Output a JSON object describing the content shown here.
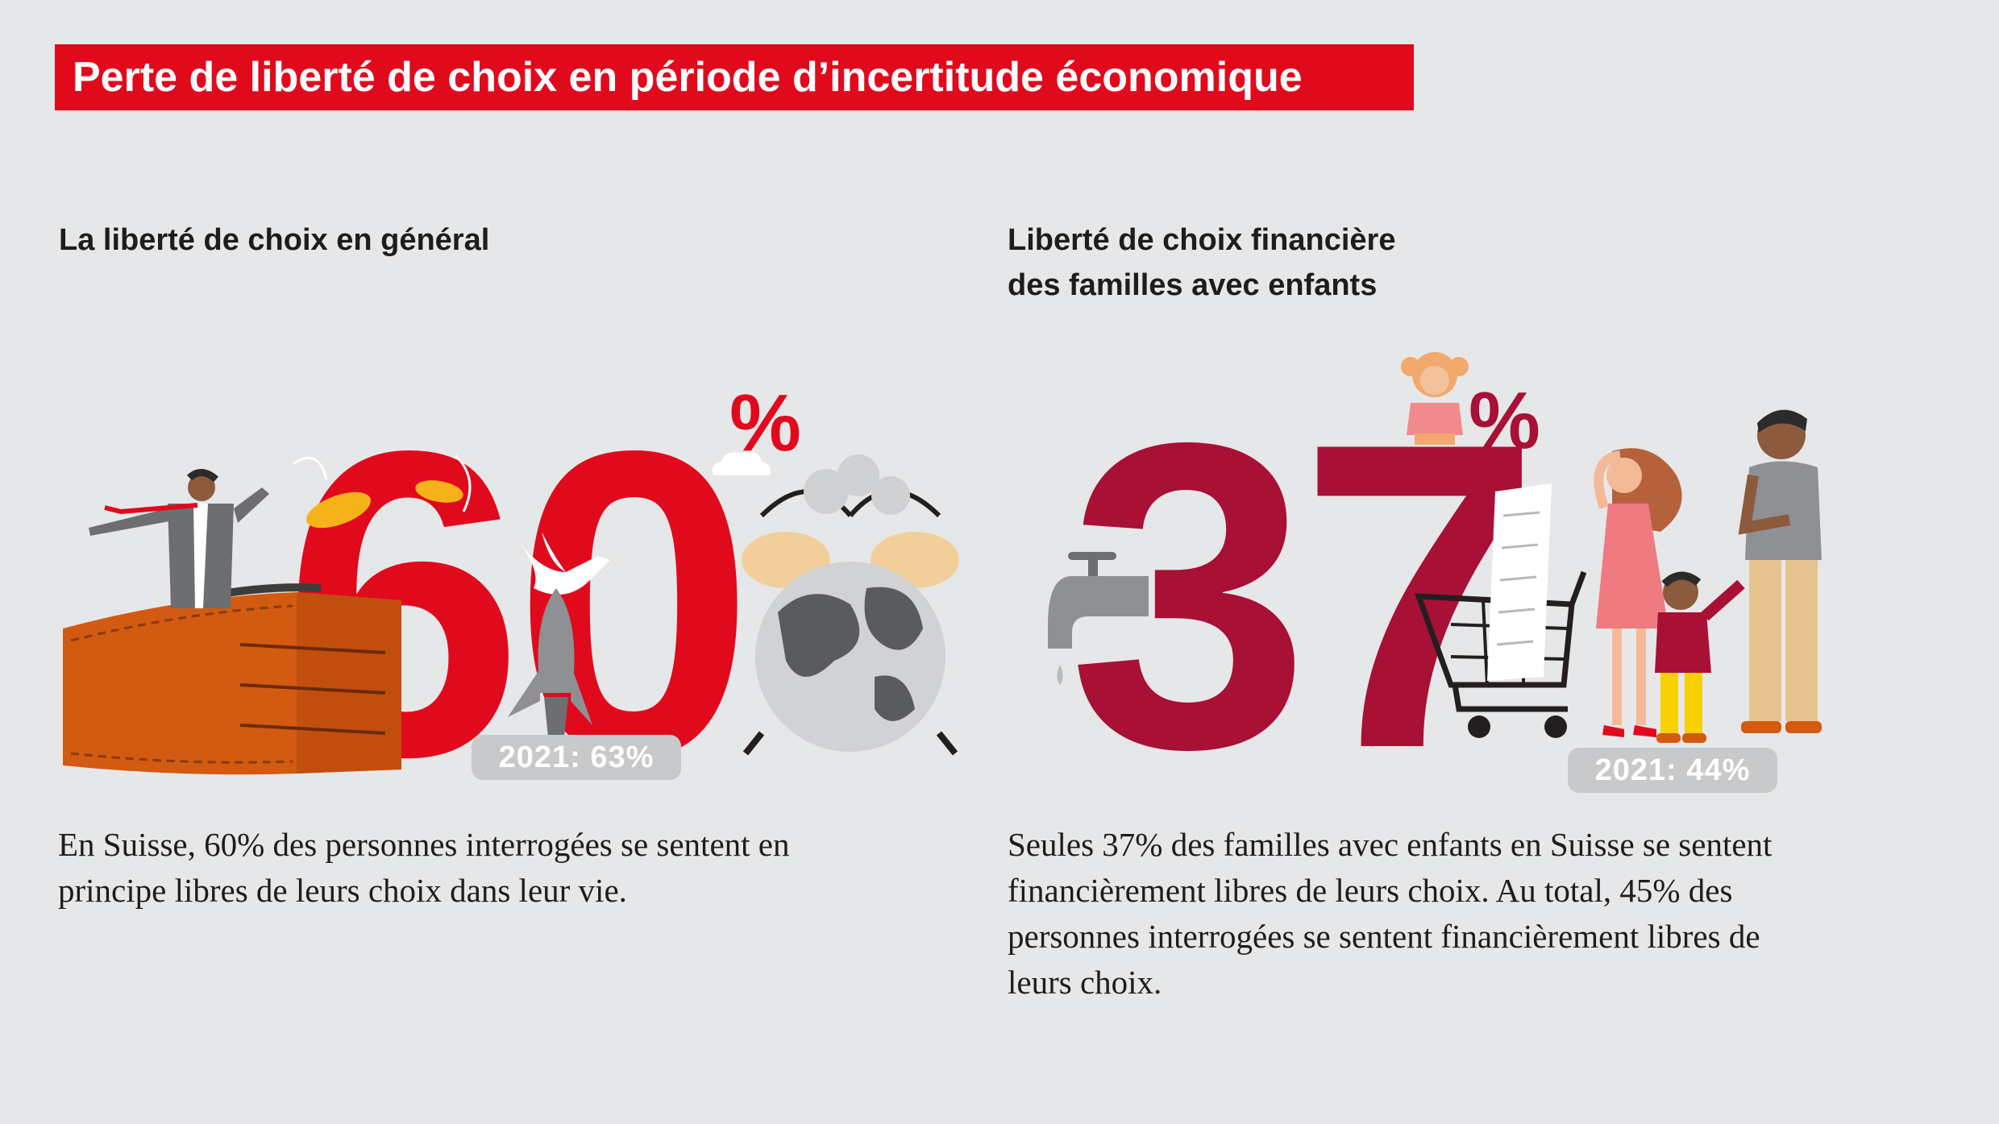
{
  "title": "Perte de liberté de choix en période d’incertitude économique",
  "left": {
    "heading": "La liberté de choix en général",
    "big_number": "60",
    "percent_sign": "%",
    "badge": "2021: 63%",
    "body_lines": [
      "En Suisse, 60% des personnes interrogées se sentent en",
      "principe libres de leurs choix dans leur vie."
    ]
  },
  "right": {
    "heading_lines": [
      "Liberté de choix financière",
      "des familles avec enfants"
    ],
    "big_number": "37",
    "percent_sign": "%",
    "badge": "2021: 44%",
    "body_lines": [
      "Seules 37% des familles avec enfants en Suisse se sentent",
      "financièrement libres de leurs choix. Au total, 45% des",
      "personnes interrogées se sentent financièrement libres de",
      "leurs choix."
    ]
  },
  "colors": {
    "background": "#e6e7e8",
    "title_red": "#e10a1d",
    "left_accent": "#e10a1d",
    "right_accent": "#a81035",
    "badge": "#c8c9cb",
    "text": "#1d1d1b"
  },
  "icons": [
    "wallet-icon",
    "businessman-icon",
    "coin-icon",
    "dove-icon",
    "rocket-icon",
    "globe-alarm-clock-icon",
    "cloud-icon",
    "faucet-icon",
    "girl-icon",
    "shopping-cart-icon",
    "receipt-icon",
    "woman-icon",
    "boy-icon",
    "man-icon"
  ]
}
